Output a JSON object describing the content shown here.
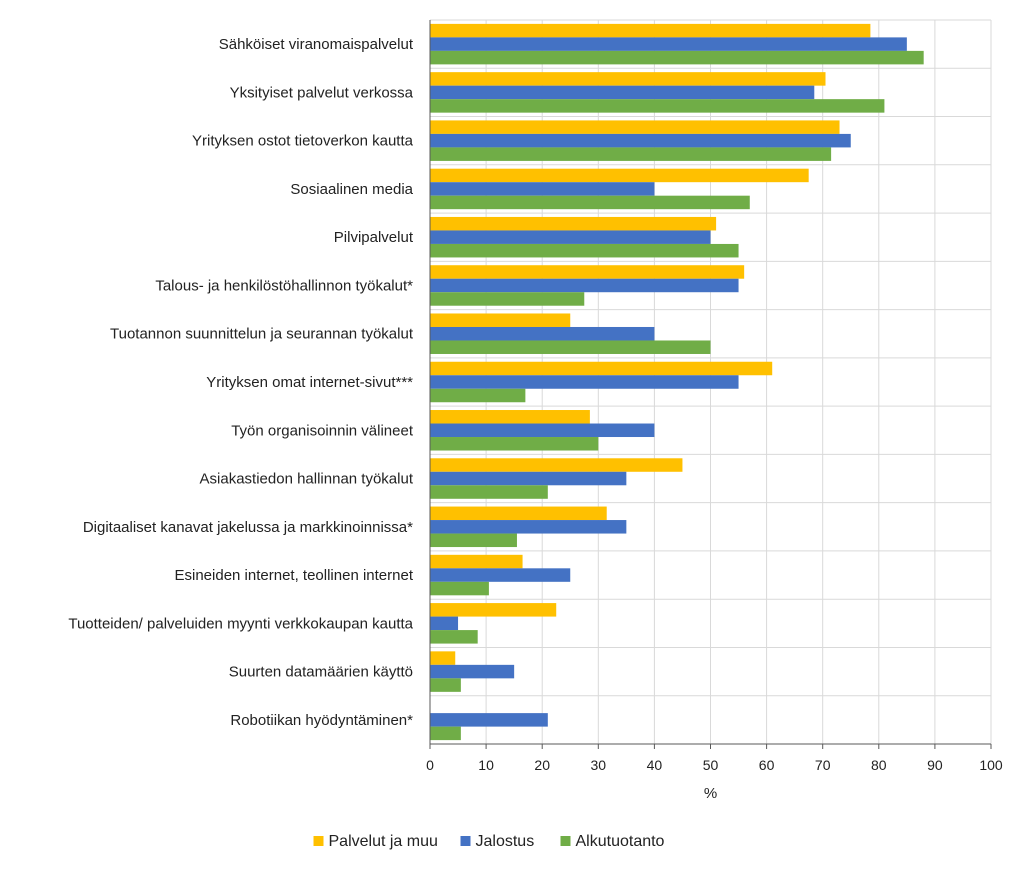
{
  "chart_data": {
    "type": "bar",
    "orientation": "horizontal",
    "categories": [
      "Sähköiset viranomaispalvelut",
      "Yksityiset palvelut verkossa",
      "Yrityksen ostot tietoverkon kautta",
      "Sosiaalinen media",
      "Pilvipalvelut",
      "Talous- ja henkilöstöhallinnon työkalut*",
      "Tuotannon suunnittelun ja seurannan työkalut",
      "Yrityksen omat internet-sivut***",
      "Työn organisoinnin välineet",
      "Asiakastiedon hallinnan työkalut",
      "Digitaaliset kanavat jakelussa ja markkinoinnissa*",
      "Esineiden internet, teollinen internet",
      "Tuotteiden/ palveluiden myynti verkkokaupan kautta",
      "Suurten datamäärien käyttö",
      "Robotiikan hyödyntäminen*"
    ],
    "series": [
      {
        "name": "Palvelut ja muu",
        "color": "#FFC000",
        "values": [
          78.5,
          70.5,
          73,
          67.5,
          51,
          56,
          25,
          61,
          28.5,
          45,
          31.5,
          16.5,
          22.5,
          4.5,
          0
        ]
      },
      {
        "name": "Jalostus",
        "color": "#4472C4",
        "values": [
          85,
          68.5,
          75,
          40,
          50,
          55,
          40,
          55,
          40,
          35,
          35,
          25,
          5,
          15,
          21
        ]
      },
      {
        "name": "Alkutuotanto",
        "color": "#70AD47",
        "values": [
          88,
          81,
          71.5,
          57,
          55,
          27.5,
          50,
          17,
          30,
          21,
          15.5,
          10.5,
          8.5,
          5.5,
          5.5
        ]
      }
    ],
    "title": "",
    "xlabel": "%",
    "ylabel": "",
    "xlim": [
      0,
      100
    ],
    "xticks": [
      "0",
      "10",
      "20",
      "30",
      "40",
      "50",
      "60",
      "70",
      "80",
      "90",
      "100"
    ],
    "grid": true,
    "legend_position": "bottom"
  }
}
